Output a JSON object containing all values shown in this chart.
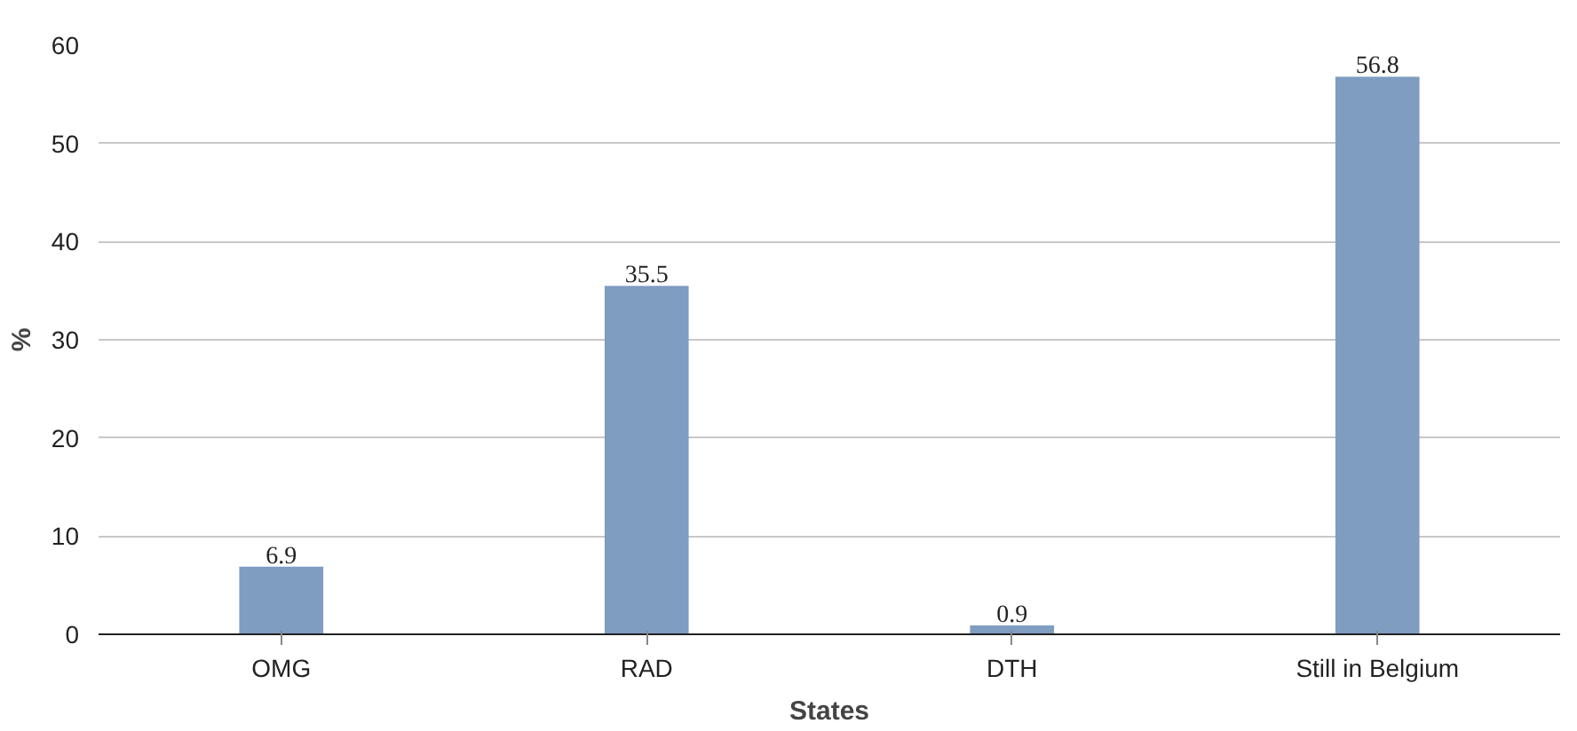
{
  "chart_data": {
    "type": "bar",
    "xlabel": "States",
    "ylabel": "%",
    "categories": [
      "OMG",
      "RAD",
      "DTH",
      "Still in Belgium"
    ],
    "values": [
      6.9,
      35.5,
      0.9,
      56.8
    ],
    "color": "#7f9cc1",
    "ylim": [
      0,
      60
    ],
    "yticks": [
      0,
      10,
      20,
      30,
      40,
      50,
      60
    ],
    "grid": "y",
    "data_labels": true
  }
}
